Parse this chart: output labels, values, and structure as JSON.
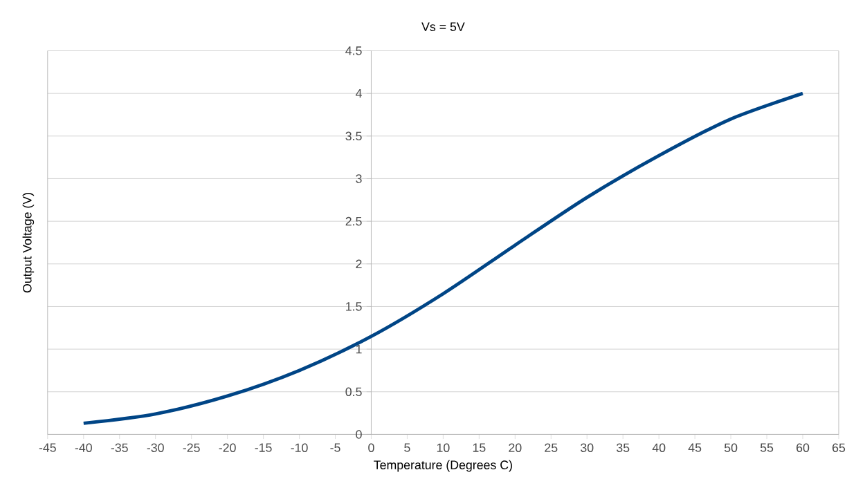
{
  "chart_data": {
    "type": "line",
    "title": "Vs = 5V",
    "xlabel": "Temperature (Degrees C)",
    "ylabel": "Output Voltage (V)",
    "x": [
      -40,
      -30,
      -20,
      -10,
      0,
      10,
      20,
      30,
      40,
      50,
      60
    ],
    "series": [
      {
        "color": "#004586",
        "values": [
          0.13,
          0.24,
          0.45,
          0.75,
          1.15,
          1.65,
          2.22,
          2.78,
          3.27,
          3.7,
          4.0
        ]
      }
    ],
    "xlim": [
      -45,
      65
    ],
    "ylim": [
      0,
      4.5
    ],
    "xticks": [
      -45,
      -40,
      -35,
      -30,
      -25,
      -20,
      -15,
      -10,
      -5,
      0,
      5,
      10,
      15,
      20,
      25,
      30,
      35,
      40,
      45,
      50,
      55,
      60,
      65
    ],
    "yticks": [
      0,
      0.5,
      1,
      1.5,
      2,
      2.5,
      3,
      3.5,
      4,
      4.5
    ],
    "grid": "y",
    "marker": "none",
    "line_style": "solid"
  }
}
